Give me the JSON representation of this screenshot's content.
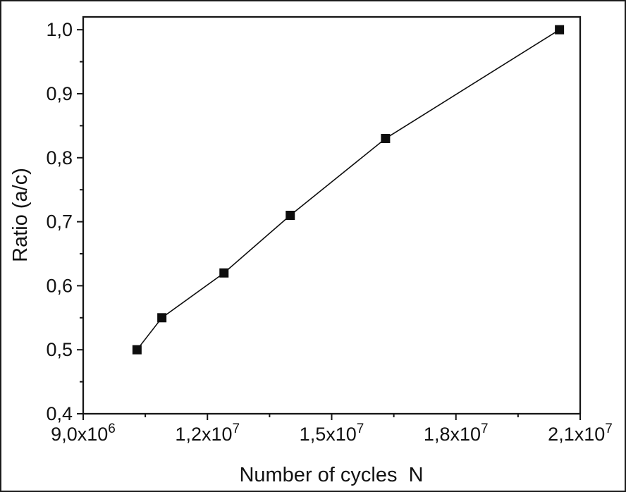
{
  "figure": {
    "background": "#ffffff",
    "outer_border_color": "#1c1c1c",
    "axis_color": "#161616",
    "series_color": "#0d0d0d"
  },
  "chart_data": {
    "type": "line",
    "title": "",
    "xlabel": "Number of cycles  N",
    "ylabel": "Ratio (a/c)",
    "x": [
      10300000,
      10900000,
      12400000,
      14000000,
      16300000,
      20500000
    ],
    "y": [
      0.5,
      0.55,
      0.62,
      0.71,
      0.83,
      1.0
    ],
    "xlim": [
      9000000,
      21000000
    ],
    "ylim": [
      0.4,
      1.02
    ],
    "x_ticks": [
      {
        "value": 9000000,
        "mantissa": "9,0x10",
        "exponent": "6"
      },
      {
        "value": 12000000,
        "mantissa": "1,2x10",
        "exponent": "7"
      },
      {
        "value": 15000000,
        "mantissa": "1,5x10",
        "exponent": "7"
      },
      {
        "value": 18000000,
        "mantissa": "1,8x10",
        "exponent": "7"
      },
      {
        "value": 21000000,
        "mantissa": "2,1x10",
        "exponent": "7"
      }
    ],
    "x_minor_ticks": [
      10500000,
      13500000,
      16500000,
      19500000
    ],
    "y_ticks": [
      {
        "value": 0.4,
        "label": "0,4"
      },
      {
        "value": 0.5,
        "label": "0,5"
      },
      {
        "value": 0.6,
        "label": "0,6"
      },
      {
        "value": 0.7,
        "label": "0,7"
      },
      {
        "value": 0.8,
        "label": "0,8"
      },
      {
        "value": 0.9,
        "label": "0,9"
      },
      {
        "value": 1.0,
        "label": "1,0"
      }
    ],
    "y_minor_ticks": [
      0.45,
      0.55,
      0.65,
      0.75,
      0.85,
      0.95
    ],
    "marker": "square",
    "grid": false,
    "legend": null
  }
}
